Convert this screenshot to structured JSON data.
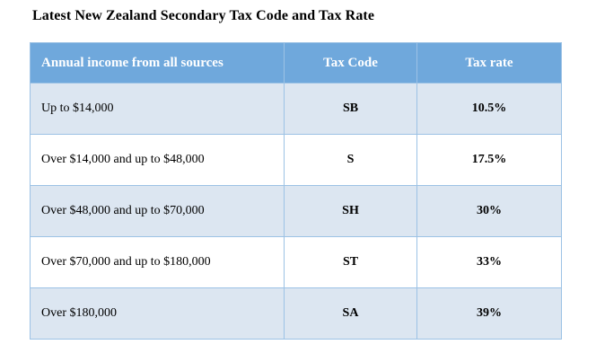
{
  "title": "Latest New Zealand Secondary Tax Code and Tax Rate",
  "table": {
    "columns": [
      "Annual income from all sources",
      "Tax Code",
      "Tax rate"
    ],
    "rows": [
      {
        "income": "Up to $14,000",
        "code": "SB",
        "rate": "10.5%"
      },
      {
        "income": "Over $14,000 and up to $48,000",
        "code": "S",
        "rate": "17.5%"
      },
      {
        "income": "Over $48,000 and up to $70,000",
        "code": "SH",
        "rate": "30%"
      },
      {
        "income": "Over $70,000 and up to $180,000",
        "code": "ST",
        "rate": "33%"
      },
      {
        "income": "Over $180,000",
        "code": "SA",
        "rate": "39%"
      }
    ]
  },
  "colors": {
    "title-text": "#000000",
    "header-bg": "#6fa8dc",
    "header-text": "#ffffff",
    "row-alt-bg": "#dce6f1",
    "row-bg": "#ffffff",
    "border": "#9cc2e5"
  }
}
